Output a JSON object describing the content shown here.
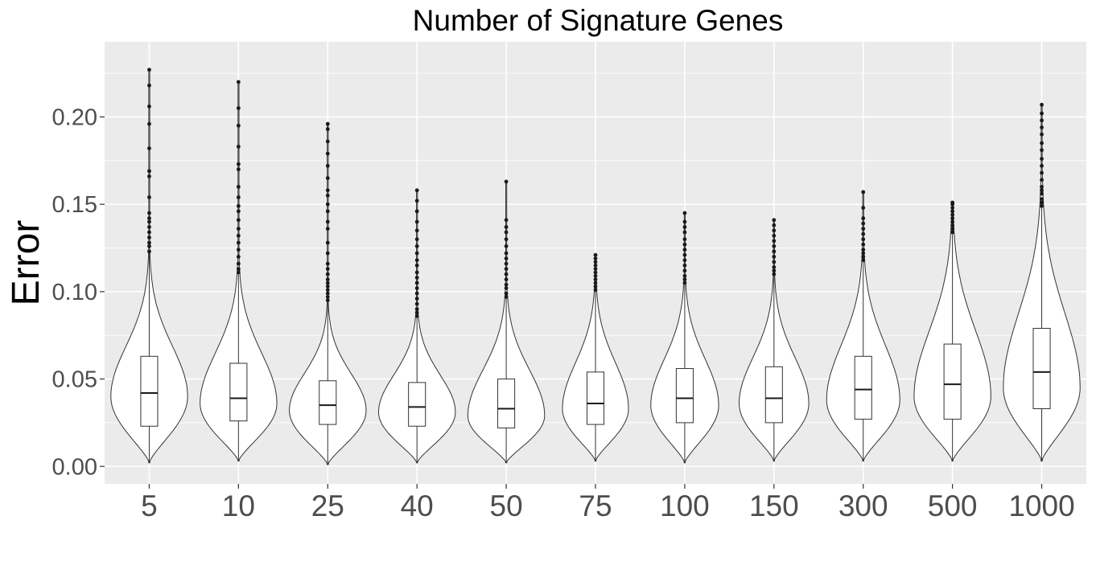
{
  "chart_data": {
    "type": "violin",
    "title": "Number of Signature Genes",
    "xlabel": "",
    "ylabel": "Error",
    "ylim": [
      -0.01,
      0.243
    ],
    "yticks": [
      0.0,
      0.05,
      0.1,
      0.15,
      0.2
    ],
    "ytick_labels": [
      "0.00",
      "0.05",
      "0.10",
      "0.15",
      "0.20"
    ],
    "grid": true,
    "background": "#ebebeb",
    "categories": [
      "5",
      "10",
      "25",
      "40",
      "50",
      "75",
      "100",
      "150",
      "300",
      "500",
      "1000"
    ],
    "series": [
      {
        "category": "5",
        "min": 0.002,
        "q1": 0.023,
        "median": 0.042,
        "q3": 0.063,
        "whisker_high": 0.122,
        "max": 0.227,
        "mode": 0.04,
        "half_width": 0.43,
        "outliers": [
          0.123,
          0.126,
          0.128,
          0.131,
          0.134,
          0.137,
          0.14,
          0.142,
          0.145,
          0.154,
          0.166,
          0.169,
          0.182,
          0.196,
          0.206,
          0.218,
          0.227
        ]
      },
      {
        "category": "10",
        "min": 0.003,
        "q1": 0.026,
        "median": 0.039,
        "q3": 0.059,
        "whisker_high": 0.11,
        "max": 0.22,
        "mode": 0.036,
        "half_width": 0.43,
        "outliers": [
          0.111,
          0.113,
          0.116,
          0.12,
          0.124,
          0.128,
          0.132,
          0.136,
          0.141,
          0.146,
          0.149,
          0.154,
          0.16,
          0.17,
          0.173,
          0.183,
          0.195,
          0.205,
          0.22
        ]
      },
      {
        "category": "25",
        "min": 0.001,
        "q1": 0.024,
        "median": 0.035,
        "q3": 0.049,
        "whisker_high": 0.094,
        "max": 0.196,
        "mode": 0.032,
        "half_width": 0.43,
        "outliers": [
          0.095,
          0.097,
          0.099,
          0.101,
          0.103,
          0.105,
          0.107,
          0.11,
          0.113,
          0.116,
          0.122,
          0.128,
          0.136,
          0.14,
          0.146,
          0.15,
          0.155,
          0.158,
          0.165,
          0.172,
          0.179,
          0.186,
          0.193,
          0.196
        ]
      },
      {
        "category": "40",
        "min": 0.002,
        "q1": 0.023,
        "median": 0.034,
        "q3": 0.048,
        "whisker_high": 0.085,
        "max": 0.158,
        "mode": 0.031,
        "half_width": 0.43,
        "outliers": [
          0.086,
          0.088,
          0.09,
          0.093,
          0.096,
          0.099,
          0.102,
          0.105,
          0.108,
          0.111,
          0.115,
          0.118,
          0.122,
          0.126,
          0.13,
          0.135,
          0.14,
          0.146,
          0.152,
          0.158
        ]
      },
      {
        "category": "50",
        "min": 0.002,
        "q1": 0.022,
        "median": 0.033,
        "q3": 0.05,
        "whisker_high": 0.096,
        "max": 0.163,
        "mode": 0.029,
        "half_width": 0.43,
        "outliers": [
          0.097,
          0.099,
          0.102,
          0.104,
          0.107,
          0.11,
          0.113,
          0.116,
          0.119,
          0.122,
          0.126,
          0.13,
          0.134,
          0.137,
          0.141,
          0.163
        ]
      },
      {
        "category": "75",
        "min": 0.003,
        "q1": 0.024,
        "median": 0.036,
        "q3": 0.054,
        "whisker_high": 0.1,
        "max": 0.121,
        "mode": 0.033,
        "half_width": 0.37,
        "outliers": [
          0.101,
          0.103,
          0.105,
          0.107,
          0.109,
          0.111,
          0.113,
          0.115,
          0.117,
          0.119,
          0.121
        ]
      },
      {
        "category": "100",
        "min": 0.002,
        "q1": 0.025,
        "median": 0.039,
        "q3": 0.056,
        "whisker_high": 0.104,
        "max": 0.145,
        "mode": 0.035,
        "half_width": 0.38,
        "outliers": [
          0.105,
          0.107,
          0.109,
          0.112,
          0.115,
          0.118,
          0.121,
          0.124,
          0.127,
          0.13,
          0.134,
          0.137,
          0.14,
          0.145
        ]
      },
      {
        "category": "150",
        "min": 0.003,
        "q1": 0.025,
        "median": 0.039,
        "q3": 0.057,
        "whisker_high": 0.109,
        "max": 0.141,
        "mode": 0.036,
        "half_width": 0.39,
        "outliers": [
          0.11,
          0.112,
          0.114,
          0.117,
          0.12,
          0.123,
          0.126,
          0.129,
          0.132,
          0.135,
          0.138,
          0.141
        ]
      },
      {
        "category": "300",
        "min": 0.003,
        "q1": 0.027,
        "median": 0.044,
        "q3": 0.063,
        "whisker_high": 0.117,
        "max": 0.157,
        "mode": 0.038,
        "half_width": 0.41,
        "outliers": [
          0.118,
          0.12,
          0.122,
          0.124,
          0.127,
          0.13,
          0.133,
          0.136,
          0.139,
          0.142,
          0.148,
          0.157
        ]
      },
      {
        "category": "500",
        "min": 0.003,
        "q1": 0.027,
        "median": 0.047,
        "q3": 0.07,
        "whisker_high": 0.133,
        "max": 0.151,
        "mode": 0.04,
        "half_width": 0.43,
        "outliers": [
          0.134,
          0.136,
          0.138,
          0.14,
          0.142,
          0.144,
          0.146,
          0.148,
          0.15,
          0.151
        ]
      },
      {
        "category": "1000",
        "min": 0.003,
        "q1": 0.033,
        "median": 0.054,
        "q3": 0.079,
        "whisker_high": 0.148,
        "max": 0.207,
        "mode": 0.045,
        "half_width": 0.43,
        "outliers": [
          0.149,
          0.151,
          0.153,
          0.156,
          0.158,
          0.16,
          0.164,
          0.168,
          0.172,
          0.176,
          0.181,
          0.185,
          0.19,
          0.194,
          0.198,
          0.202,
          0.207
        ]
      }
    ]
  }
}
